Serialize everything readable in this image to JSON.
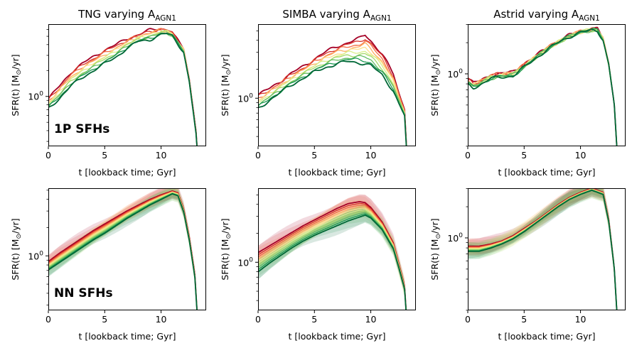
{
  "chart_data": {
    "type": "line",
    "panels": [
      {
        "id": "tng-1p",
        "row": 0,
        "col": 0,
        "title_main": "TNG varying A",
        "title_sub": "AGN1",
        "xlabel": "t [lookback time; Gyr]",
        "ylabel_main": "SFR(t) [M",
        "ylabel_sun": "⊙",
        "ylabel_tail": "/yr]",
        "xlim": [
          0,
          14
        ],
        "ylog": [
          -0.58,
          0.84
        ],
        "xticks": [
          "0",
          "5",
          "10"
        ],
        "xtick_values": [
          0,
          5,
          10
        ],
        "ytick_base": "10",
        "ytick_exp": "0",
        "ytick_value": 0,
        "annotation": "1P SFHs",
        "top_x": [
          0,
          1,
          2,
          3,
          4,
          5,
          6,
          7,
          8,
          9,
          10,
          10.5,
          11,
          12,
          12.5,
          12.8,
          13.1,
          13.3
        ],
        "top_y": [
          -0.03,
          0.12,
          0.28,
          0.38,
          0.46,
          0.54,
          0.6,
          0.67,
          0.72,
          0.77,
          0.79,
          0.78,
          0.74,
          0.55,
          0.2,
          -0.1,
          -0.4,
          -0.8
        ],
        "bottom_x": [
          0,
          1,
          2,
          3,
          4,
          5,
          6,
          7,
          8,
          9,
          10,
          10.5,
          11,
          12,
          12.5,
          12.8,
          13.1,
          13.3
        ],
        "bottom_y": [
          -0.14,
          -0.02,
          0.12,
          0.22,
          0.3,
          0.38,
          0.46,
          0.56,
          0.64,
          0.66,
          0.72,
          0.73,
          0.7,
          0.52,
          0.17,
          -0.13,
          -0.43,
          -0.8
        ],
        "band": 0
      },
      {
        "id": "simba-1p",
        "row": 0,
        "col": 1,
        "title_main": "SIMBA varying A",
        "title_sub": "AGN1",
        "xlabel": "t [lookback time; Gyr]",
        "ylabel_main": "SFR(t) [M",
        "ylabel_sun": "⊙",
        "ylabel_tail": "/yr]",
        "xlim": [
          0,
          14
        ],
        "ylog": [
          -0.5,
          0.77
        ],
        "xticks": [
          "0",
          "5",
          "10"
        ],
        "xtick_values": [
          0,
          5,
          10
        ],
        "ytick_base": "10",
        "ytick_exp": "0",
        "ytick_value": 0,
        "annotation": "",
        "top_x": [
          0,
          1,
          2,
          3,
          4,
          5,
          6,
          7,
          8,
          9,
          9.5,
          10,
          11,
          12,
          12.5,
          13.0,
          13.3
        ],
        "top_y": [
          0.03,
          0.1,
          0.18,
          0.26,
          0.33,
          0.41,
          0.48,
          0.54,
          0.58,
          0.62,
          0.66,
          0.6,
          0.46,
          0.25,
          0.05,
          -0.12,
          -0.8
        ],
        "bottom_x": [
          0,
          1,
          2,
          3,
          4,
          5,
          6,
          7,
          8,
          9,
          9.5,
          10,
          11,
          12,
          12.5,
          13.0,
          13.3
        ],
        "bottom_y": [
          -0.11,
          -0.02,
          0.06,
          0.14,
          0.21,
          0.27,
          0.32,
          0.36,
          0.38,
          0.37,
          0.36,
          0.34,
          0.24,
          0.08,
          -0.06,
          -0.18,
          -0.8
        ],
        "band": 0
      },
      {
        "id": "astrid-1p",
        "row": 0,
        "col": 2,
        "title_main": "Astrid varying A",
        "title_sub": "AGN1",
        "xlabel": "t [lookback time; Gyr]",
        "ylabel_main": "SFR(t) [M",
        "ylabel_sun": "⊙",
        "ylabel_tail": "/yr]",
        "xlim": [
          0,
          14
        ],
        "ylog": [
          -0.7,
          0.48
        ],
        "xticks": [
          "0",
          "5",
          "10"
        ],
        "xtick_values": [
          0,
          5,
          10
        ],
        "ytick_base": "10",
        "ytick_exp": "0",
        "ytick_value": 0,
        "annotation": "",
        "top_x": [
          0,
          0.5,
          1,
          2,
          3,
          4,
          5,
          6,
          7,
          8,
          9,
          10,
          11,
          11.5,
          12,
          12.5,
          13,
          13.3
        ],
        "top_y": [
          -0.05,
          -0.09,
          -0.07,
          -0.01,
          0.0,
          0.02,
          0.09,
          0.17,
          0.25,
          0.31,
          0.37,
          0.41,
          0.43,
          0.43,
          0.34,
          0.1,
          -0.3,
          -0.85
        ],
        "bottom_x": [
          0,
          0.5,
          1,
          2,
          3,
          4,
          5,
          6,
          7,
          8,
          9,
          10,
          11,
          11.5,
          12,
          12.5,
          13,
          13.3
        ],
        "bottom_y": [
          -0.1,
          -0.13,
          -0.11,
          -0.05,
          -0.03,
          -0.02,
          0.06,
          0.15,
          0.23,
          0.3,
          0.36,
          0.4,
          0.42,
          0.42,
          0.33,
          0.09,
          -0.3,
          -0.85
        ],
        "band": 0
      },
      {
        "id": "tng-nn",
        "row": 1,
        "col": 0,
        "title_main": "",
        "title_sub": "",
        "xlabel": "t [lookback time; Gyr]",
        "ylabel_main": "SFR(t) [M",
        "ylabel_sun": "⊙",
        "ylabel_tail": "/yr]",
        "xlim": [
          0,
          14
        ],
        "ylog": [
          -0.58,
          0.72
        ],
        "xticks": [
          "0",
          "5",
          "10"
        ],
        "xtick_values": [
          0,
          5,
          10
        ],
        "ytick_base": "10",
        "ytick_exp": "0",
        "ytick_value": 0,
        "annotation": "NN SFHs",
        "top_x": [
          0,
          1,
          2,
          3,
          4,
          5,
          6,
          7,
          8,
          9,
          10,
          11,
          11.5,
          12,
          12.5,
          13.0,
          13.3
        ],
        "top_y": [
          -0.06,
          0.03,
          0.11,
          0.19,
          0.27,
          0.34,
          0.41,
          0.48,
          0.54,
          0.6,
          0.65,
          0.69,
          0.67,
          0.5,
          0.2,
          -0.2,
          -0.8
        ],
        "bottom_x": [
          0,
          1,
          2,
          3,
          4,
          5,
          6,
          7,
          8,
          9,
          10,
          11,
          11.5,
          12,
          12.5,
          13.0,
          13.3
        ],
        "bottom_y": [
          -0.15,
          -0.07,
          0.01,
          0.09,
          0.17,
          0.24,
          0.32,
          0.4,
          0.47,
          0.54,
          0.6,
          0.66,
          0.64,
          0.47,
          0.17,
          -0.23,
          -0.8
        ],
        "band": 0.06
      },
      {
        "id": "simba-nn",
        "row": 1,
        "col": 1,
        "title_main": "",
        "title_sub": "",
        "xlabel": "t [lookback time; Gyr]",
        "ylabel_main": "SFR(t) [M",
        "ylabel_sun": "⊙",
        "ylabel_tail": "/yr]",
        "xlim": [
          0,
          14
        ],
        "ylog": [
          -0.5,
          0.77
        ],
        "xticks": [
          "0",
          "5",
          "10"
        ],
        "xtick_values": [
          0,
          5,
          10
        ],
        "ytick_base": "10",
        "ytick_exp": "0",
        "ytick_value": 0,
        "annotation": "",
        "top_x": [
          0,
          1,
          2,
          3,
          4,
          5,
          6,
          7,
          8,
          9,
          9.5,
          10,
          11,
          12,
          12.5,
          13.0,
          13.3
        ],
        "top_y": [
          0.1,
          0.17,
          0.24,
          0.31,
          0.38,
          0.44,
          0.5,
          0.56,
          0.61,
          0.63,
          0.62,
          0.57,
          0.42,
          0.2,
          -0.02,
          -0.25,
          -0.8
        ],
        "bottom_x": [
          0,
          1,
          2,
          3,
          4,
          5,
          6,
          7,
          8,
          9,
          9.5,
          10,
          11,
          12,
          12.5,
          13.0,
          13.3
        ],
        "bottom_y": [
          -0.1,
          -0.01,
          0.07,
          0.15,
          0.22,
          0.28,
          0.33,
          0.38,
          0.43,
          0.47,
          0.49,
          0.46,
          0.34,
          0.14,
          -0.06,
          -0.28,
          -0.8
        ],
        "band": 0.07
      },
      {
        "id": "astrid-nn",
        "row": 1,
        "col": 2,
        "title_main": "",
        "title_sub": "",
        "xlabel": "t [lookback time; Gyr]",
        "ylabel_main": "SFR(t) [M",
        "ylabel_sun": "⊙",
        "ylabel_tail": "/yr]",
        "xlim": [
          0,
          14
        ],
        "ylog": [
          -0.7,
          0.48
        ],
        "xticks": [
          "0",
          "5",
          "10"
        ],
        "xtick_values": [
          0,
          5,
          10
        ],
        "ytick_base": "10",
        "ytick_exp": "0",
        "ytick_value": 0,
        "annotation": "",
        "top_x": [
          0,
          1,
          2,
          3,
          4,
          5,
          6,
          7,
          8,
          9,
          10,
          11,
          12,
          12.5,
          13.0,
          13.3
        ],
        "top_y": [
          -0.08,
          -0.08,
          -0.06,
          -0.03,
          0.02,
          0.09,
          0.16,
          0.24,
          0.32,
          0.39,
          0.44,
          0.48,
          0.44,
          0.18,
          -0.3,
          -0.85
        ],
        "bottom_x": [
          0,
          1,
          2,
          3,
          4,
          5,
          6,
          7,
          8,
          9,
          10,
          11,
          12,
          12.5,
          13.0,
          13.3
        ],
        "bottom_y": [
          -0.13,
          -0.13,
          -0.1,
          -0.06,
          -0.01,
          0.06,
          0.14,
          0.22,
          0.3,
          0.37,
          0.42,
          0.46,
          0.42,
          0.16,
          -0.3,
          -0.85
        ],
        "band": 0.06
      }
    ],
    "series_colors": [
      "#a50026",
      "#d73027",
      "#f46d43",
      "#fdae61",
      "#fee08b",
      "#d9ef8b",
      "#a6d96a",
      "#66bd63",
      "#1a9850",
      "#006837"
    ]
  }
}
